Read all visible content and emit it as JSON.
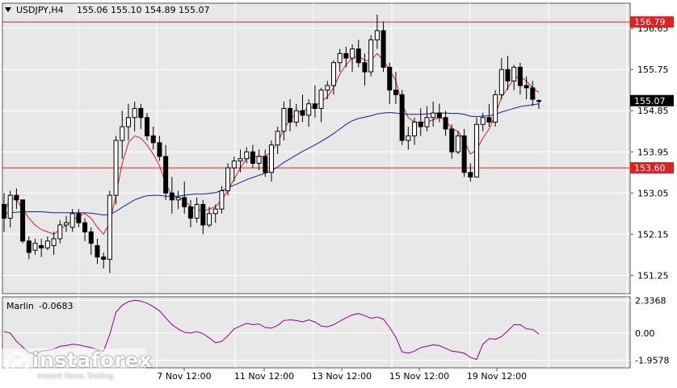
{
  "header": {
    "symbol": "USDJPY,H4",
    "ohlc": "155.06 155.10 154.89 155.07"
  },
  "indicator": {
    "name": "Marlin",
    "value": "-0.0683"
  },
  "levels": [
    {
      "value": 156.79,
      "label": "156.79",
      "color": "#e02020"
    },
    {
      "value": 153.6,
      "label": "153.60",
      "color": "#e02020"
    }
  ],
  "current_price": {
    "value": 155.07,
    "label": "155.07"
  },
  "watermark": {
    "name": "instaforex",
    "tagline": "Instant Forex Trading"
  },
  "colors": {
    "background": "#e8e8e8",
    "grid": "#ffffff",
    "bull": "#ffffff",
    "bear": "#000000",
    "fast_ma": "#d02020",
    "slow_ma": "#1020a0",
    "oscillator": "#8b008b"
  },
  "chart_data": [
    {
      "type": "candlestick",
      "title": "USDJPY,H4",
      "ylim": [
        150.85,
        157.2
      ],
      "y_ticks": [
        "156.65",
        "155.75",
        "154.85",
        "153.95",
        "153.05",
        "152.15",
        "151.25"
      ],
      "x_labels": [
        "7 Nov 12:00",
        "11 Nov 12:00",
        "13 Nov 12:00",
        "15 Nov 12:00",
        "19 Nov 12:00"
      ],
      "candles": [
        [
          152.8,
          153.05,
          152.2,
          152.5
        ],
        [
          152.5,
          153.1,
          152.3,
          153.0
        ],
        [
          153.0,
          153.15,
          152.7,
          152.9
        ],
        [
          152.9,
          152.9,
          151.95,
          152.0
        ],
        [
          152.0,
          152.1,
          151.6,
          151.75
        ],
        [
          151.8,
          152.05,
          151.7,
          151.95
        ],
        [
          151.9,
          152.05,
          151.65,
          151.85
        ],
        [
          151.85,
          152.1,
          151.8,
          152.0
        ],
        [
          151.9,
          152.2,
          151.7,
          152.05
        ],
        [
          152.05,
          152.45,
          151.95,
          152.35
        ],
        [
          152.35,
          152.55,
          152.2,
          152.4
        ],
        [
          152.3,
          152.7,
          152.2,
          152.6
        ],
        [
          152.6,
          152.7,
          152.3,
          152.4
        ],
        [
          152.4,
          152.5,
          152.0,
          152.2
        ],
        [
          152.2,
          152.3,
          151.7,
          151.95
        ],
        [
          151.9,
          152.05,
          151.5,
          151.65
        ],
        [
          151.65,
          151.75,
          151.4,
          151.6
        ],
        [
          151.6,
          153.1,
          151.3,
          153.0
        ],
        [
          153.0,
          154.3,
          152.8,
          154.2
        ],
        [
          154.2,
          154.85,
          153.8,
          154.5
        ],
        [
          154.5,
          155.0,
          154.2,
          154.7
        ],
        [
          154.7,
          155.05,
          154.4,
          154.9
        ],
        [
          154.9,
          155.0,
          154.45,
          154.7
        ],
        [
          154.7,
          154.8,
          154.2,
          154.3
        ],
        [
          154.3,
          154.5,
          154.0,
          154.15
        ],
        [
          154.15,
          154.3,
          153.75,
          153.85
        ],
        [
          153.85,
          154.1,
          152.9,
          153.05
        ],
        [
          153.05,
          153.4,
          152.6,
          152.9
        ],
        [
          152.9,
          153.1,
          152.7,
          152.95
        ],
        [
          152.95,
          153.3,
          152.6,
          152.75
        ],
        [
          152.75,
          152.9,
          152.3,
          152.5
        ],
        [
          152.5,
          152.95,
          152.4,
          152.8
        ],
        [
          152.8,
          152.9,
          152.15,
          152.35
        ],
        [
          152.35,
          152.75,
          152.3,
          152.6
        ],
        [
          152.6,
          152.8,
          152.4,
          152.7
        ],
        [
          152.7,
          153.2,
          152.6,
          153.1
        ],
        [
          153.1,
          153.7,
          153.0,
          153.6
        ],
        [
          153.6,
          153.85,
          153.3,
          153.75
        ],
        [
          153.75,
          154.0,
          153.5,
          153.8
        ],
        [
          153.8,
          154.05,
          153.7,
          153.95
        ],
        [
          153.95,
          154.1,
          153.6,
          153.7
        ],
        [
          153.7,
          154.0,
          153.55,
          153.85
        ],
        [
          153.85,
          154.0,
          153.4,
          153.5
        ],
        [
          153.5,
          154.2,
          153.3,
          154.1
        ],
        [
          154.1,
          154.5,
          153.9,
          154.4
        ],
        [
          154.4,
          155.05,
          154.2,
          154.9
        ],
        [
          154.9,
          155.1,
          154.4,
          154.6
        ],
        [
          154.6,
          155.0,
          154.5,
          154.85
        ],
        [
          154.85,
          155.2,
          154.6,
          154.75
        ],
        [
          154.75,
          155.1,
          154.5,
          155.0
        ],
        [
          155.0,
          155.4,
          154.7,
          154.9
        ],
        [
          154.9,
          155.35,
          154.6,
          155.3
        ],
        [
          155.3,
          155.5,
          155.1,
          155.4
        ],
        [
          155.4,
          155.95,
          155.2,
          155.9
        ],
        [
          155.9,
          156.2,
          155.7,
          156.1
        ],
        [
          156.1,
          156.25,
          155.8,
          156.0
        ],
        [
          156.0,
          156.3,
          155.7,
          156.2
        ],
        [
          156.2,
          156.4,
          155.8,
          155.9
        ],
        [
          155.9,
          156.1,
          155.4,
          155.7
        ],
        [
          155.7,
          156.5,
          155.6,
          156.4
        ],
        [
          156.4,
          156.95,
          156.2,
          156.6
        ],
        [
          156.6,
          156.8,
          155.7,
          155.8
        ],
        [
          155.8,
          155.9,
          155.0,
          155.3
        ],
        [
          155.3,
          155.7,
          155.0,
          155.2
        ],
        [
          155.2,
          155.3,
          154.1,
          154.2
        ],
        [
          154.2,
          154.5,
          154.0,
          154.3
        ],
        [
          154.3,
          154.7,
          154.1,
          154.6
        ],
        [
          154.6,
          154.9,
          154.3,
          154.5
        ],
        [
          154.5,
          154.95,
          154.4,
          154.7
        ],
        [
          154.7,
          155.05,
          154.5,
          154.8
        ],
        [
          154.8,
          155.0,
          154.6,
          154.7
        ],
        [
          154.7,
          154.85,
          154.3,
          154.45
        ],
        [
          154.45,
          154.55,
          153.8,
          153.95
        ],
        [
          153.95,
          154.4,
          153.9,
          154.3
        ],
        [
          154.3,
          154.45,
          153.4,
          153.5
        ],
        [
          153.5,
          153.7,
          153.3,
          153.4
        ],
        [
          153.4,
          154.7,
          153.4,
          154.55
        ],
        [
          154.55,
          154.8,
          154.4,
          154.7
        ],
        [
          154.7,
          155.0,
          154.5,
          154.6
        ],
        [
          154.6,
          155.3,
          154.5,
          155.2
        ],
        [
          155.2,
          156.0,
          155.1,
          155.75
        ],
        [
          155.75,
          156.05,
          155.3,
          155.5
        ],
        [
          155.5,
          155.85,
          155.3,
          155.8
        ],
        [
          155.8,
          155.9,
          155.2,
          155.4
        ],
        [
          155.4,
          155.6,
          155.1,
          155.35
        ],
        [
          155.35,
          155.5,
          154.95,
          155.1
        ],
        [
          155.06,
          155.1,
          154.89,
          155.07
        ]
      ],
      "series": [
        {
          "name": "",
          "values": [
            152.6,
            152.95,
            152.9,
            152.7,
            152.5,
            152.35,
            152.25,
            152.2,
            152.15,
            152.25,
            152.35,
            152.45,
            152.55,
            152.6,
            152.5,
            152.3,
            152.15,
            152.4,
            153.0,
            153.7,
            154.15,
            154.3,
            154.25,
            154.1,
            153.9,
            153.65,
            153.25,
            153.0,
            152.95,
            152.9,
            152.75,
            152.7,
            152.65,
            152.7,
            152.75,
            152.9,
            153.1,
            153.35,
            153.6,
            153.8,
            153.85,
            153.85,
            153.85,
            153.95,
            154.15,
            154.45,
            154.65,
            154.8,
            154.85,
            154.9,
            154.95,
            155.05,
            155.15,
            155.35,
            155.65,
            155.85,
            156.0,
            156.05,
            155.95,
            155.95,
            156.1,
            155.95,
            155.75,
            155.5,
            155.0,
            154.7,
            154.6,
            154.6,
            154.6,
            154.65,
            154.7,
            154.65,
            154.45,
            154.4,
            154.2,
            153.9,
            154.0,
            154.25,
            154.45,
            154.75,
            155.15,
            155.35,
            155.55,
            155.6,
            155.5,
            155.35,
            155.25
          ]
        },
        {
          "name": "",
          "values": [
            152.6,
            152.62,
            152.63,
            152.64,
            152.64,
            152.64,
            152.64,
            152.63,
            152.62,
            152.62,
            152.62,
            152.62,
            152.62,
            152.62,
            152.61,
            152.59,
            152.57,
            152.58,
            152.65,
            152.74,
            152.82,
            152.9,
            152.95,
            152.99,
            153.0,
            153.0,
            152.98,
            152.98,
            152.98,
            153.0,
            153.02,
            153.03,
            153.03,
            153.04,
            153.06,
            153.1,
            153.16,
            153.22,
            153.28,
            153.34,
            153.39,
            153.44,
            153.48,
            153.54,
            153.62,
            153.72,
            153.8,
            153.88,
            153.96,
            154.03,
            154.1,
            154.18,
            154.26,
            154.35,
            154.45,
            154.55,
            154.63,
            154.68,
            154.71,
            154.74,
            154.78,
            154.8,
            154.81,
            154.8,
            154.78,
            154.77,
            154.77,
            154.77,
            154.78,
            154.79,
            154.8,
            154.8,
            154.79,
            154.79,
            154.77,
            154.73,
            154.72,
            154.73,
            154.74,
            154.77,
            154.82,
            154.86,
            154.9,
            154.94,
            154.96,
            154.98,
            155.0
          ]
        }
      ]
    },
    {
      "type": "line",
      "title": "Marlin -0.0683",
      "ylim": [
        -2.5,
        2.6
      ],
      "y_ticks": [
        "2.3368",
        "0.00",
        "-1.9578"
      ],
      "series": [
        {
          "name": "Marlin",
          "values": [
            0.1,
            0.0,
            -0.6,
            -1.0,
            -1.4,
            -1.5,
            -1.3,
            -1.25,
            -1.15,
            -0.95,
            -0.9,
            -0.8,
            -0.85,
            -0.95,
            -1.05,
            -1.2,
            -1.3,
            -0.1,
            1.5,
            2.0,
            2.25,
            2.35,
            2.3,
            2.15,
            1.9,
            1.6,
            1.1,
            0.6,
            0.3,
            0.05,
            0.0,
            0.1,
            -0.05,
            -0.35,
            -0.7,
            -0.6,
            -0.2,
            0.3,
            0.5,
            0.7,
            0.6,
            0.65,
            0.4,
            0.35,
            0.55,
            0.9,
            0.95,
            0.9,
            0.8,
            0.95,
            0.8,
            0.5,
            0.45,
            0.6,
            0.85,
            1.1,
            1.3,
            1.4,
            1.25,
            1.05,
            1.15,
            1.0,
            0.4,
            -0.3,
            -1.35,
            -1.45,
            -1.3,
            -1.05,
            -0.95,
            -0.85,
            -0.9,
            -1.1,
            -1.3,
            -1.35,
            -1.45,
            -1.75,
            -1.9,
            -0.8,
            -0.4,
            -0.45,
            -0.25,
            0.15,
            0.6,
            0.6,
            0.3,
            0.25,
            -0.0683
          ]
        }
      ]
    }
  ]
}
